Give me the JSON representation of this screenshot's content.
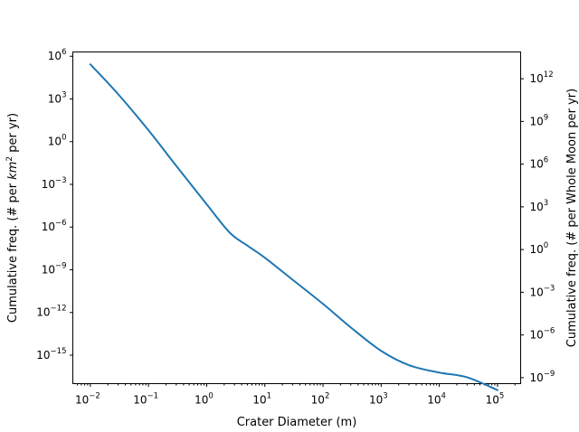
{
  "chart_data": {
    "type": "line",
    "title": "",
    "xlabel": "Crater Diameter (m)",
    "ylabel_left_parts": [
      "Cumulative freq. (# per ",
      "km",
      "2",
      " per yr)"
    ],
    "ylabel_right": "Cumulative freq. (# per Whole Moon per yr)",
    "xscale": "log",
    "yscale": "log",
    "xlim": [
      0.005,
      250000
    ],
    "ylim_left": [
      1e-17,
      2000000.0
    ],
    "ylim_right": [
      3.8e-10,
      76000000000000.0
    ],
    "grid": false,
    "legend": "none",
    "x_ticks": [
      {
        "base": "10",
        "exp": "−2",
        "value": 0.01
      },
      {
        "base": "10",
        "exp": "−1",
        "value": 0.1
      },
      {
        "base": "10",
        "exp": "0",
        "value": 1
      },
      {
        "base": "10",
        "exp": "1",
        "value": 10
      },
      {
        "base": "10",
        "exp": "2",
        "value": 100
      },
      {
        "base": "10",
        "exp": "3",
        "value": 1000
      },
      {
        "base": "10",
        "exp": "4",
        "value": 10000
      },
      {
        "base": "10",
        "exp": "5",
        "value": 100000
      }
    ],
    "y_ticks_left": [
      {
        "base": "10",
        "exp": "6",
        "value": 1000000.0
      },
      {
        "base": "10",
        "exp": "3",
        "value": 1000.0
      },
      {
        "base": "10",
        "exp": "0",
        "value": 1
      },
      {
        "base": "10",
        "exp": "−3",
        "value": 0.001
      },
      {
        "base": "10",
        "exp": "−6",
        "value": 1e-06
      },
      {
        "base": "10",
        "exp": "−9",
        "value": 1e-09
      },
      {
        "base": "10",
        "exp": "−12",
        "value": 1e-12
      },
      {
        "base": "10",
        "exp": "−15",
        "value": 1e-15
      }
    ],
    "y_ticks_right": [
      {
        "base": "10",
        "exp": "12",
        "value": 1000000000000.0
      },
      {
        "base": "10",
        "exp": "9",
        "value": 1000000000.0
      },
      {
        "base": "10",
        "exp": "6",
        "value": 1000000.0
      },
      {
        "base": "10",
        "exp": "3",
        "value": 1000.0
      },
      {
        "base": "10",
        "exp": "0",
        "value": 1
      },
      {
        "base": "10",
        "exp": "−3",
        "value": 0.001
      },
      {
        "base": "10",
        "exp": "−6",
        "value": 1e-06
      },
      {
        "base": "10",
        "exp": "−9",
        "value": 1e-09
      }
    ],
    "series": [
      {
        "color": "#1f77b4",
        "x": [
          0.01,
          0.03,
          0.1,
          0.3,
          1,
          2.5,
          5,
          10,
          30,
          100,
          300,
          1000,
          3000,
          10000,
          30000,
          100000
        ],
        "y": [
          270000.0,
          2200.0,
          6.3,
          0.02,
          4e-05,
          4e-07,
          5e-08,
          7e-09,
          2e-10,
          4e-12,
          9e-14,
          2e-15,
          2e-16,
          6e-17,
          2.8e-17,
          3.5e-18
        ]
      }
    ]
  }
}
